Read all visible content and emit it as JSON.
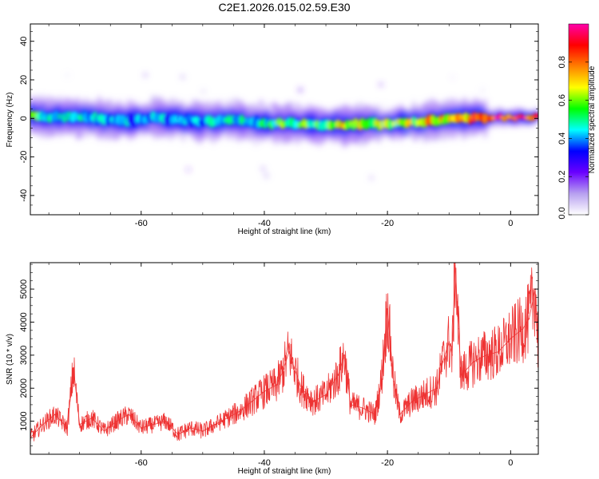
{
  "title": "C2E1.2026.015.02.59.E30",
  "chart_data": [
    {
      "type": "heatmap",
      "xlabel": "Height of straight line (km)",
      "ylabel": "Frequency (Hz)",
      "xlim": [
        -78,
        4.5
      ],
      "ylim": [
        -50,
        49
      ],
      "xticks": [
        -60,
        -40,
        -20,
        0
      ],
      "xtick_labels": [
        "-60",
        "-40",
        "-20",
        "0"
      ],
      "yticks": [
        -40,
        -20,
        0,
        20,
        40
      ],
      "ytick_labels": [
        "-40",
        "-20",
        "0",
        "20",
        "40"
      ],
      "grid": false,
      "ridge": {
        "x": [
          -78,
          -74,
          -70,
          -66,
          -62,
          -58,
          -54,
          -50,
          -46,
          -42,
          -38,
          -34,
          -30,
          -27,
          -24,
          -20,
          -16,
          -12,
          -8,
          -4,
          0,
          4
        ],
        "freq": [
          1.5,
          0.5,
          1.0,
          -0.5,
          -1.0,
          0.5,
          -0.5,
          -1.5,
          -1.0,
          -2.0,
          -2.5,
          -3.0,
          -3.5,
          -3.5,
          -3.0,
          -3.0,
          -2.0,
          -1.0,
          0.0,
          0.5,
          0.5,
          0.5
        ],
        "amplitude": [
          0.55,
          0.45,
          0.45,
          0.4,
          0.4,
          0.4,
          0.4,
          0.4,
          0.45,
          0.45,
          0.55,
          0.55,
          0.5,
          0.7,
          0.6,
          0.6,
          0.65,
          0.7,
          0.75,
          0.85,
          0.95,
          0.95
        ]
      },
      "colorbar": {
        "label": "Normalized spectral amplitude",
        "range": [
          0.0,
          1.0
        ],
        "ticks": [
          0.0,
          0.2,
          0.4,
          0.6,
          0.8
        ],
        "tick_labels": [
          "0.0",
          "0.2",
          "0.4",
          "0.6",
          "0.8"
        ],
        "colors": [
          "#ffffff",
          "#b7a0f0",
          "#6a00ff",
          "#0000ff",
          "#00ffff",
          "#00ff00",
          "#ffff00",
          "#ff8000",
          "#ff0000",
          "#ff00aa"
        ]
      }
    },
    {
      "type": "line",
      "xlabel": "Height of straight line (km)",
      "ylabel": "SNR (10 * v/v)",
      "xlim": [
        -78,
        4.5
      ],
      "ylim": [
        0,
        5800
      ],
      "xticks": [
        -60,
        -40,
        -20,
        0
      ],
      "xtick_labels": [
        "-60",
        "-40",
        "-20",
        "0"
      ],
      "yticks": [
        1000,
        2000,
        3000,
        4000,
        5000
      ],
      "ytick_labels": [
        "1000",
        "2000",
        "3000",
        "4000",
        "5000"
      ],
      "grid": false,
      "series": [
        {
          "color": "#ee3333",
          "x": [
            -78,
            -76,
            -74,
            -72,
            -71,
            -70,
            -68,
            -66,
            -64,
            -62,
            -60,
            -58,
            -56,
            -54,
            -52,
            -50,
            -48,
            -46,
            -44,
            -42,
            -40,
            -38,
            -37,
            -36,
            -34,
            -32,
            -30,
            -28,
            -27,
            -26,
            -24,
            -22,
            -21,
            -20,
            -19,
            -18,
            -16,
            -14,
            -12,
            -11,
            -10,
            -9.5,
            -9,
            -8.5,
            -8,
            -6,
            -4,
            -2,
            0,
            2,
            3,
            4,
            4.5
          ],
          "y": [
            500,
            900,
            1200,
            800,
            2600,
            900,
            1100,
            700,
            1000,
            1200,
            800,
            900,
            1000,
            600,
            800,
            700,
            900,
            1100,
            1300,
            1600,
            1900,
            2100,
            2500,
            3100,
            2000,
            1600,
            1800,
            2400,
            3000,
            1500,
            1400,
            1200,
            2200,
            4400,
            2200,
            1200,
            1600,
            1800,
            2000,
            2800,
            3400,
            3000,
            5800,
            3800,
            2400,
            2800,
            3000,
            3100,
            3500,
            3800,
            4100,
            5000,
            3200
          ]
        }
      ]
    }
  ]
}
